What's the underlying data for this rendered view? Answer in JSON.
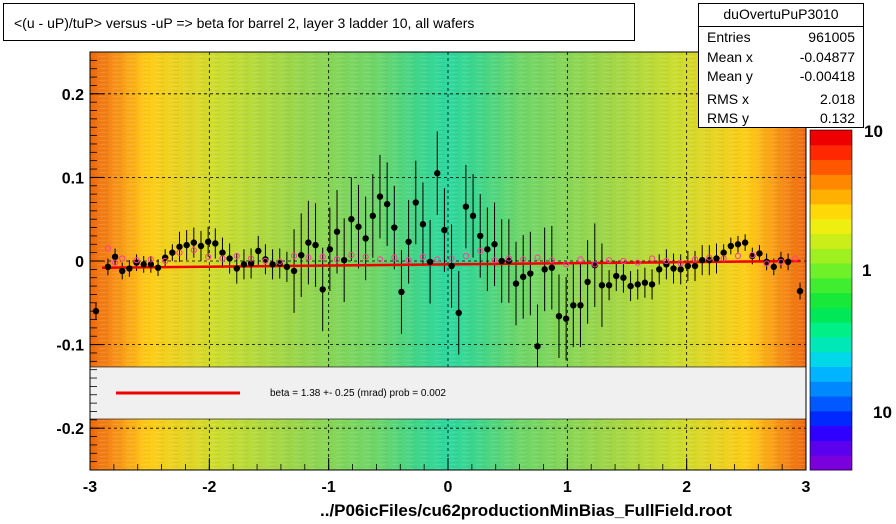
{
  "title": "<(u - uP)/tuP> versus  -uP => beta for barrel 2, layer 3 ladder 10, all wafers",
  "stats": {
    "name": "duOvertuPuP3010",
    "rows": [
      {
        "key": "Entries",
        "value": "961005"
      },
      {
        "key": "Mean x",
        "value": "-0.04877"
      },
      {
        "key": "Mean y",
        "value": "-0.00418"
      },
      {
        "key": "RMS x",
        "value": "2.018"
      },
      {
        "key": "RMS y",
        "value": "0.132"
      }
    ]
  },
  "footer": "../P06icFiles/cu62productionMinBias_FullField.root",
  "legend": {
    "text": "beta =    1.38 +-  0.25 (mrad) prob = 0.002"
  },
  "zaxis": {
    "labels": [
      "10",
      "1",
      "10"
    ],
    "partial_label": "10"
  },
  "chart_data": {
    "type": "scatter",
    "title": "<(u - uP)/tuP> versus  -uP => beta for barrel 2, layer 3 ladder 10, all wafers",
    "xlabel": "",
    "ylabel": "",
    "xlim": [
      -3,
      3
    ],
    "ylim": [
      -0.25,
      0.25
    ],
    "xticks": [
      -3,
      -2,
      -1,
      0,
      1,
      2,
      3
    ],
    "yticks": [
      -0.2,
      -0.1,
      0,
      0.1,
      0.2
    ],
    "xtick_labels": [
      "-3",
      "-2",
      "-1",
      "0",
      "1",
      "2",
      "3"
    ],
    "ytick_labels": [
      "-0.2",
      "-0.1",
      "0",
      "0.1",
      "0.2"
    ],
    "grid": true,
    "colors": {
      "black_points": "#000000",
      "pink_points": "#ff3d9e",
      "fit_line": "#ee0000"
    },
    "series": [
      {
        "marker": "black-dot",
        "x": [
          -2.95,
          -2.85,
          -2.79,
          -2.73,
          -2.67,
          -2.61,
          -2.55,
          -2.49,
          -2.43,
          -2.37,
          -2.31,
          -2.25,
          -2.19,
          -2.13,
          -2.07,
          -2.01,
          -1.95,
          -1.89,
          -1.83,
          -1.77,
          -1.71,
          -1.65,
          -1.59,
          -1.53,
          -1.47,
          -1.41,
          -1.35,
          -1.29,
          -1.23,
          -1.17,
          -1.11,
          -1.05,
          -0.99,
          -0.93,
          -0.87,
          -0.81,
          -0.75,
          -0.69,
          -0.63,
          -0.57,
          -0.51,
          -0.45,
          -0.39,
          -0.33,
          -0.27,
          -0.21,
          -0.15,
          -0.09,
          -0.03,
          0.03,
          0.09,
          0.15,
          0.21,
          0.27,
          0.33,
          0.39,
          0.45,
          0.51,
          0.57,
          0.63,
          0.69,
          0.75,
          0.81,
          0.87,
          0.93,
          0.99,
          1.05,
          1.11,
          1.17,
          1.23,
          1.29,
          1.35,
          1.41,
          1.47,
          1.53,
          1.59,
          1.65,
          1.71,
          1.77,
          1.83,
          1.89,
          1.95,
          2.01,
          2.07,
          2.13,
          2.19,
          2.25,
          2.31,
          2.37,
          2.43,
          2.49,
          2.55,
          2.61,
          2.67,
          2.73,
          2.79,
          2.85,
          2.95
        ],
        "y": [
          -0.06,
          -0.007,
          0.005,
          -0.012,
          -0.009,
          -0.002,
          -0.004,
          -0.004,
          -0.008,
          0.004,
          0.01,
          0.017,
          0.019,
          0.022,
          0.018,
          0.023,
          0.021,
          0.01,
          0.003,
          -0.009,
          -0.004,
          -0.003,
          0.012,
          0.002,
          -0.004,
          -0.003,
          -0.007,
          -0.012,
          0.007,
          0.022,
          0.019,
          -0.034,
          0.014,
          0.035,
          0.001,
          0.05,
          0.041,
          0.027,
          0.054,
          0.077,
          0.068,
          0.04,
          -0.037,
          0.023,
          0.07,
          0.044,
          -0.001,
          0.105,
          0.037,
          -0.006,
          -0.062,
          0.065,
          0.054,
          0.03,
          0.014,
          0.02,
          0.0,
          0.0,
          -0.027,
          -0.019,
          -0.015,
          -0.102,
          -0.01,
          -0.008,
          -0.066,
          -0.069,
          -0.053,
          -0.053,
          -0.025,
          -0.005,
          -0.029,
          -0.029,
          -0.018,
          -0.02,
          -0.03,
          -0.028,
          -0.026,
          -0.028,
          -0.01,
          -0.004,
          -0.009,
          -0.01,
          -0.006,
          -0.006,
          0.001,
          0.001,
          0.003,
          0.01,
          0.018,
          0.02,
          0.022,
          0.006,
          0.009,
          -0.001,
          -0.007,
          0.001,
          -0.001,
          -0.036
        ]
      },
      {
        "marker": "pink-circle",
        "x": [
          -2.85,
          -2.79,
          -2.73,
          -2.61,
          -2.49,
          -2.37,
          -2.25,
          -2.13,
          -2.01,
          -1.89,
          -1.77,
          -1.65,
          -1.53,
          -1.41,
          -1.29,
          -1.17,
          -1.05,
          -0.93,
          -0.81,
          -0.69,
          -0.57,
          -0.45,
          -0.33,
          -0.21,
          -0.09,
          0.03,
          0.15,
          0.27,
          0.39,
          0.51,
          0.63,
          0.75,
          0.87,
          0.99,
          1.11,
          1.23,
          1.35,
          1.47,
          1.59,
          1.71,
          1.83,
          1.95,
          2.07,
          2.19,
          2.31,
          2.43,
          2.55,
          2.67,
          2.79,
          2.91
        ],
        "y": [
          0.015,
          -0.002,
          0.003,
          0.001,
          0.002,
          0.0,
          0.01,
          0.013,
          0.005,
          0.003,
          0.006,
          0.003,
          0.0,
          -0.001,
          0.006,
          0.004,
          0.005,
          0.002,
          0.007,
          0.005,
          0.002,
          0.004,
          0.001,
          0.005,
          0.002,
          0.003,
          0.006,
          0.012,
          0.001,
          0.003,
          0.002,
          0.004,
          0.001,
          -0.004,
          0.002,
          -0.004,
          0.001,
          0.0,
          -0.002,
          0.003,
          0.0,
          -0.003,
          0.002,
          0.004,
          0.003,
          0.006,
          0.007,
          -0.003,
          -0.001,
          0.003
        ]
      }
    ],
    "fit_line": {
      "x": [
        -2.9,
        2.95
      ],
      "y": [
        -0.008,
        0.0
      ]
    },
    "legend_placement": "bottom band"
  }
}
